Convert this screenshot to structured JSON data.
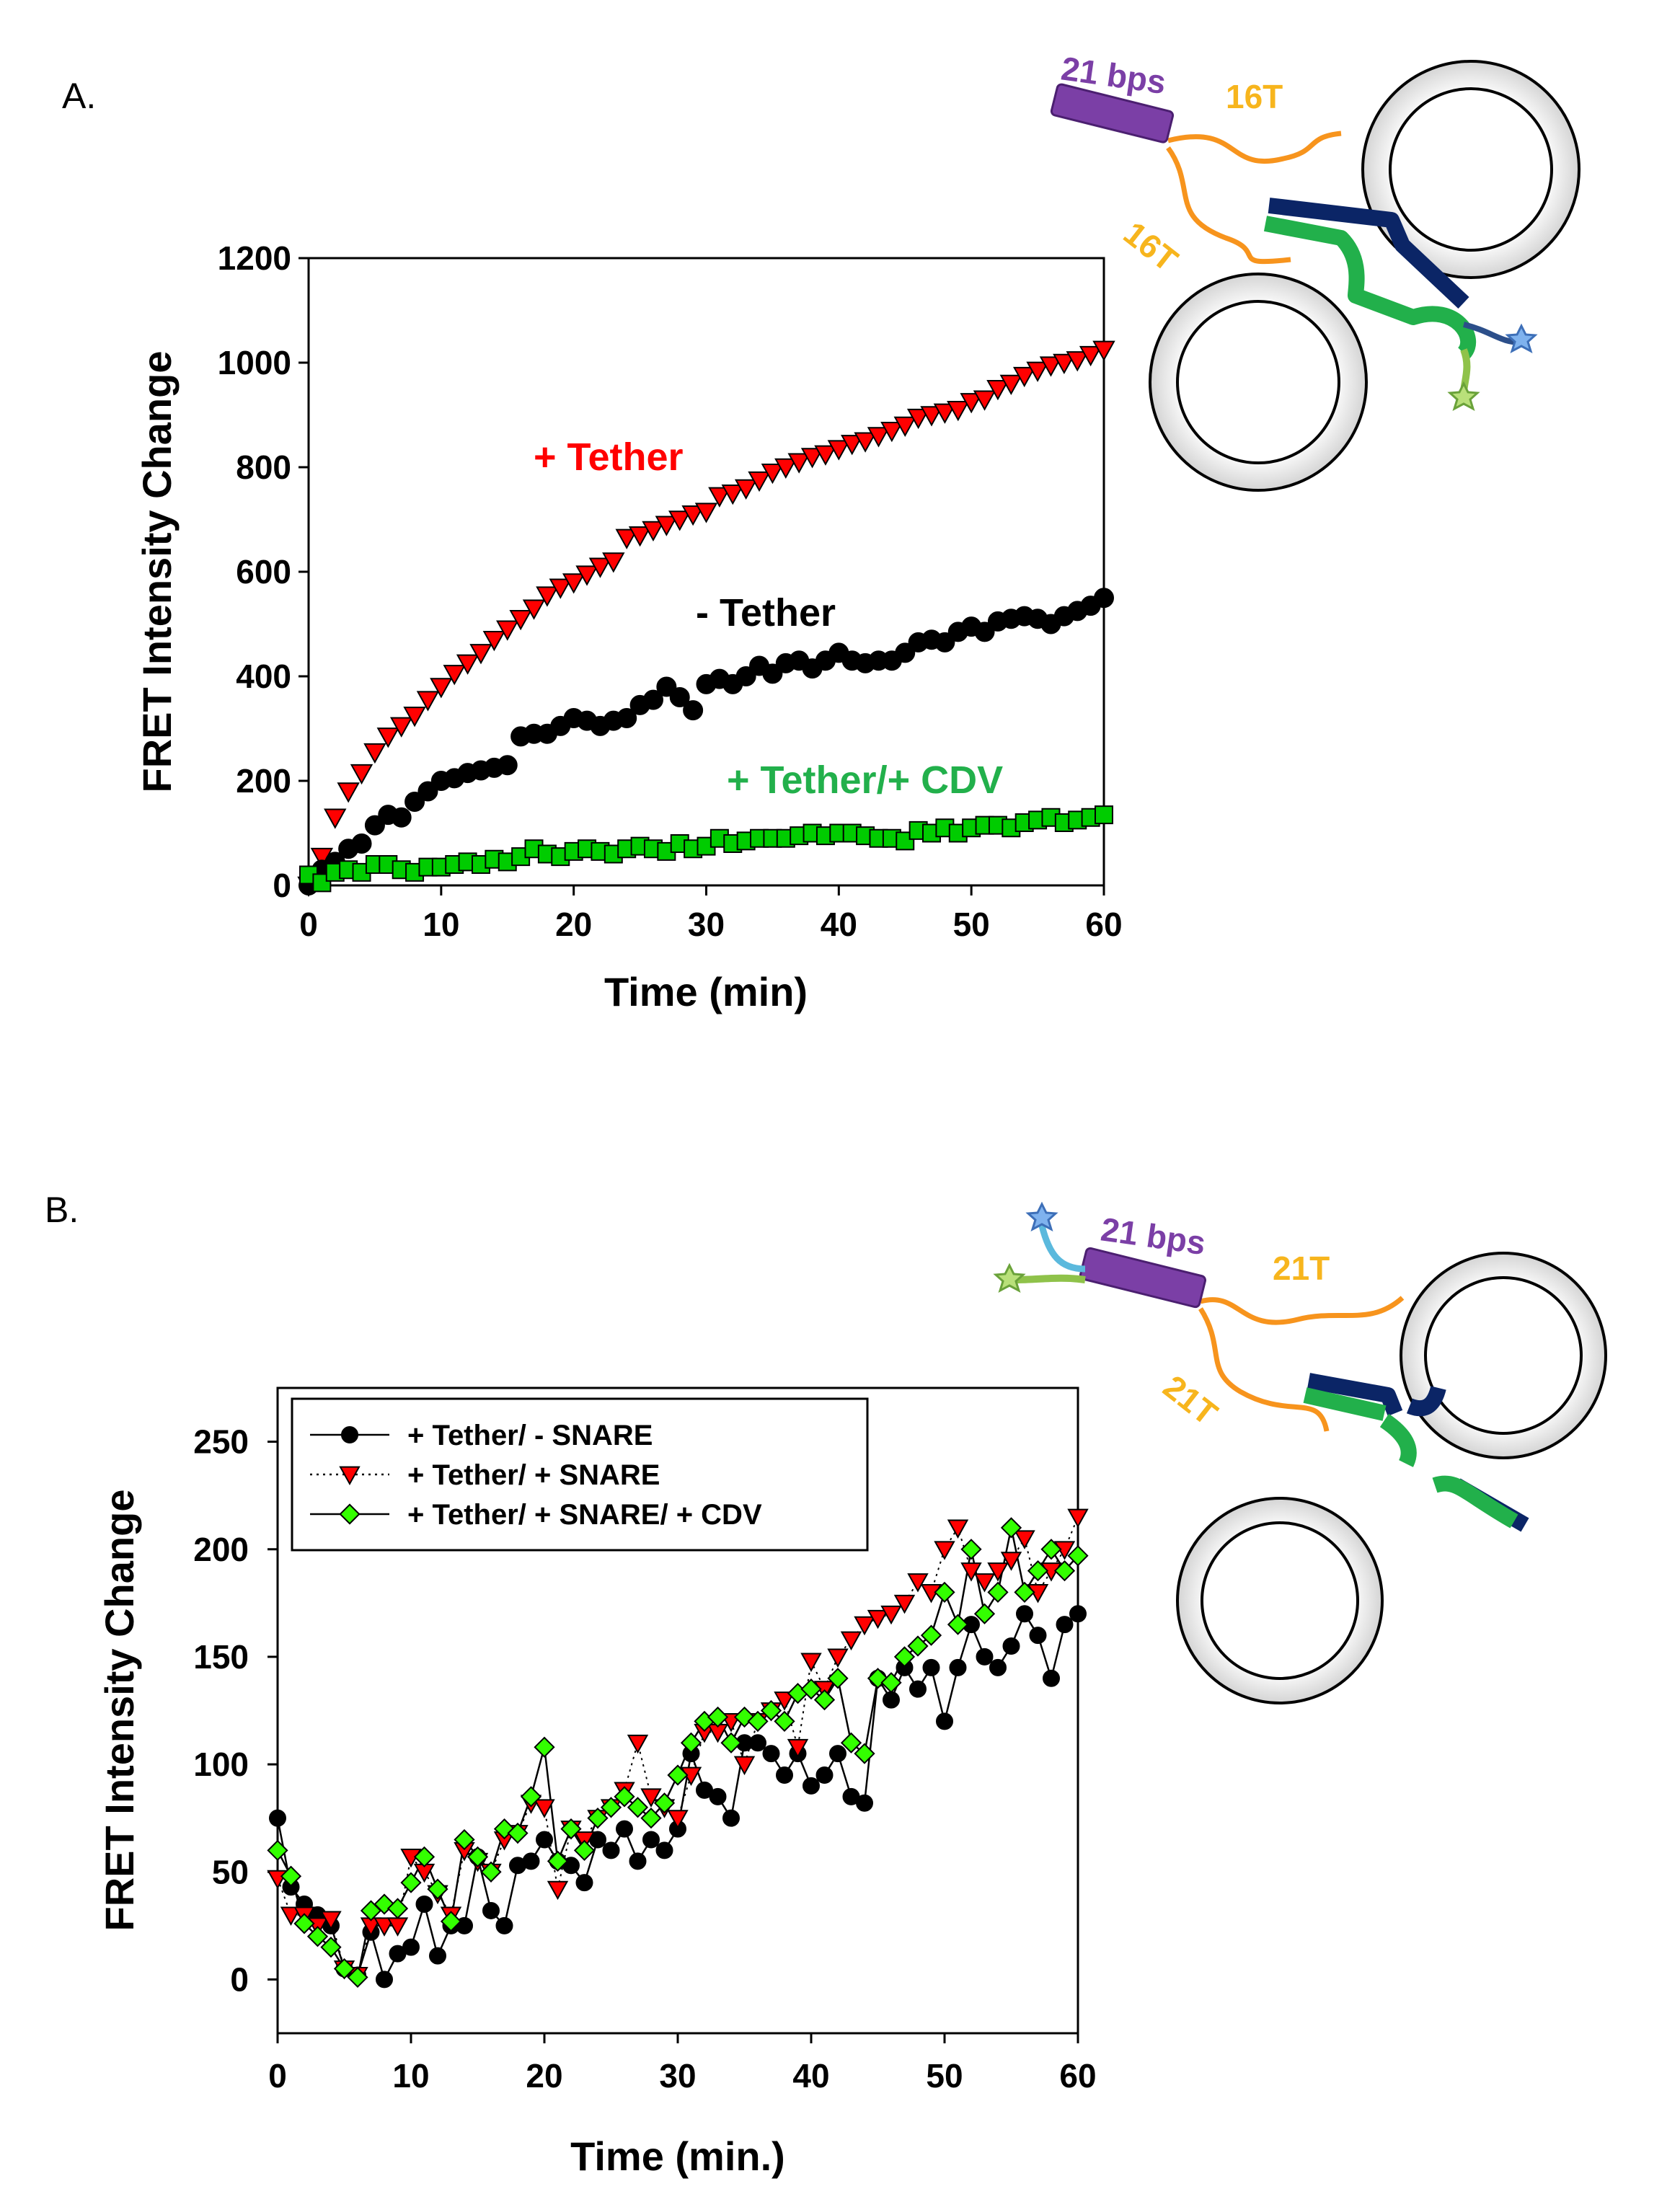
{
  "panels": {
    "a": {
      "label": "A."
    },
    "b": {
      "label": "B."
    }
  },
  "chart_data": [
    {
      "type": "scatter",
      "panel": "A.",
      "xlabel": "Time (min)",
      "ylabel": "FRET Intensity Change",
      "xlim": [
        0,
        60
      ],
      "ylim": [
        0,
        1200
      ],
      "xticks": [
        "0",
        "10",
        "20",
        "30",
        "40",
        "50",
        "60"
      ],
      "yticks": [
        "0",
        "200",
        "400",
        "600",
        "800",
        "1000",
        "1200"
      ],
      "legend": "inline labels",
      "series": [
        {
          "name": "+ Tether",
          "marker": "triangle-down",
          "color": "#ff0000",
          "x": [
            0,
            1,
            2,
            3,
            4,
            5,
            6,
            7,
            8,
            9,
            10,
            11,
            12,
            13,
            14,
            15,
            16,
            17,
            18,
            19,
            20,
            21,
            22,
            23,
            24,
            25,
            26,
            27,
            28,
            29,
            30,
            31,
            32,
            33,
            34,
            35,
            36,
            37,
            38,
            39,
            40,
            41,
            42,
            43,
            44,
            45,
            46,
            47,
            48,
            49,
            50,
            51,
            52,
            53,
            54,
            55,
            56,
            57,
            58,
            59,
            60
          ],
          "y": [
            0,
            55,
            130,
            180,
            215,
            255,
            285,
            305,
            325,
            355,
            380,
            405,
            425,
            445,
            470,
            490,
            510,
            530,
            555,
            570,
            580,
            595,
            610,
            620,
            665,
            670,
            680,
            690,
            700,
            710,
            715,
            745,
            750,
            760,
            775,
            790,
            800,
            810,
            820,
            825,
            835,
            845,
            850,
            860,
            870,
            880,
            895,
            900,
            905,
            910,
            925,
            930,
            950,
            960,
            975,
            985,
            995,
            1000,
            1005,
            1015,
            1025
          ]
        },
        {
          "name": "- Tether",
          "marker": "circle",
          "color": "#000000",
          "x": [
            0,
            1,
            2,
            3,
            4,
            5,
            6,
            7,
            8,
            9,
            10,
            11,
            12,
            13,
            14,
            15,
            16,
            17,
            18,
            19,
            20,
            21,
            22,
            23,
            24,
            25,
            26,
            27,
            28,
            29,
            30,
            31,
            32,
            33,
            34,
            35,
            36,
            37,
            38,
            39,
            40,
            41,
            42,
            43,
            44,
            45,
            46,
            47,
            48,
            49,
            50,
            51,
            52,
            53,
            54,
            55,
            56,
            57,
            58,
            59,
            60
          ],
          "y": [
            0,
            30,
            45,
            70,
            80,
            115,
            135,
            130,
            160,
            180,
            200,
            205,
            215,
            220,
            225,
            230,
            285,
            290,
            290,
            305,
            320,
            315,
            305,
            315,
            320,
            345,
            355,
            380,
            360,
            335,
            385,
            395,
            385,
            400,
            420,
            405,
            425,
            430,
            415,
            430,
            445,
            430,
            425,
            430,
            430,
            445,
            465,
            470,
            465,
            485,
            495,
            485,
            505,
            510,
            515,
            510,
            500,
            515,
            525,
            535,
            550
          ]
        },
        {
          "name": "+ Tether/+ CDV",
          "marker": "square",
          "color": "#00cc00",
          "x": [
            0,
            1,
            2,
            3,
            4,
            5,
            6,
            7,
            8,
            9,
            10,
            11,
            12,
            13,
            14,
            15,
            16,
            17,
            18,
            19,
            20,
            21,
            22,
            23,
            24,
            25,
            26,
            27,
            28,
            29,
            30,
            31,
            32,
            33,
            34,
            35,
            36,
            37,
            38,
            39,
            40,
            41,
            42,
            43,
            44,
            45,
            46,
            47,
            48,
            49,
            50,
            51,
            52,
            53,
            54,
            55,
            56,
            57,
            58,
            59,
            60
          ],
          "y": [
            20,
            5,
            25,
            30,
            25,
            40,
            40,
            30,
            25,
            35,
            35,
            40,
            45,
            40,
            50,
            45,
            55,
            70,
            60,
            55,
            65,
            70,
            65,
            60,
            70,
            75,
            70,
            65,
            80,
            70,
            75,
            90,
            80,
            85,
            90,
            90,
            90,
            95,
            100,
            95,
            100,
            100,
            95,
            90,
            90,
            85,
            105,
            100,
            110,
            100,
            110,
            115,
            115,
            110,
            120,
            125,
            130,
            120,
            125,
            130,
            135
          ]
        }
      ]
    },
    {
      "type": "line",
      "panel": "B.",
      "xlabel": "Time (min.)",
      "ylabel": "FRET Intensity Change",
      "xlim": [
        0,
        60
      ],
      "ylim": [
        -25,
        275
      ],
      "xticks": [
        "0",
        "10",
        "20",
        "30",
        "40",
        "50",
        "60"
      ],
      "yticks": [
        "0",
        "50",
        "100",
        "150",
        "200",
        "250"
      ],
      "legend": "top-left",
      "series": [
        {
          "name": "+ Tether/ - SNARE",
          "marker": "circle",
          "color": "#000000",
          "x": [
            0,
            1,
            2,
            3,
            4,
            5,
            6,
            7,
            8,
            9,
            10,
            11,
            12,
            13,
            14,
            15,
            16,
            17,
            18,
            19,
            20,
            21,
            22,
            23,
            24,
            25,
            26,
            27,
            28,
            29,
            30,
            31,
            32,
            33,
            34,
            35,
            36,
            37,
            38,
            39,
            40,
            41,
            42,
            43,
            44,
            45,
            46,
            47,
            48,
            49,
            50,
            51,
            52,
            53,
            54,
            55,
            56,
            57,
            58,
            59,
            60
          ],
          "y": [
            75,
            43,
            35,
            30,
            25,
            5,
            2,
            22,
            0,
            12,
            15,
            35,
            11,
            25,
            25,
            57,
            32,
            25,
            53,
            55,
            65,
            55,
            53,
            45,
            65,
            60,
            70,
            55,
            65,
            60,
            70,
            105,
            88,
            85,
            75,
            110,
            110,
            105,
            95,
            105,
            90,
            95,
            105,
            85,
            82,
            140,
            130,
            145,
            135,
            145,
            120,
            145,
            165,
            150,
            145,
            155,
            170,
            160,
            140,
            165,
            170
          ]
        },
        {
          "name": "+ Tether/ + SNARE",
          "marker": "triangle-down",
          "color": "#ff0000",
          "x": [
            0,
            1,
            2,
            3,
            4,
            5,
            6,
            7,
            8,
            9,
            10,
            11,
            12,
            13,
            14,
            15,
            16,
            17,
            18,
            19,
            20,
            21,
            22,
            23,
            24,
            25,
            26,
            27,
            28,
            29,
            30,
            31,
            32,
            33,
            34,
            35,
            36,
            37,
            38,
            39,
            40,
            41,
            42,
            43,
            44,
            45,
            46,
            47,
            48,
            49,
            50,
            51,
            52,
            53,
            54,
            55,
            56,
            57,
            58,
            59,
            60
          ],
          "y": [
            47,
            30,
            30,
            25,
            28,
            5,
            2,
            25,
            25,
            25,
            57,
            50,
            40,
            30,
            60,
            55,
            50,
            65,
            68,
            82,
            80,
            42,
            70,
            65,
            75,
            80,
            88,
            110,
            85,
            80,
            75,
            95,
            115,
            115,
            120,
            100,
            120,
            125,
            130,
            108,
            148,
            135,
            150,
            158,
            165,
            168,
            170,
            175,
            185,
            180,
            200,
            210,
            190,
            185,
            190,
            195,
            205,
            180,
            190,
            200,
            215
          ]
        },
        {
          "name": "+ Tether/ + SNARE/ + CDV",
          "marker": "diamond",
          "color": "#33ff00",
          "x": [
            0,
            1,
            2,
            3,
            4,
            5,
            6,
            7,
            8,
            9,
            10,
            11,
            12,
            13,
            14,
            15,
            16,
            17,
            18,
            19,
            20,
            21,
            22,
            23,
            24,
            25,
            26,
            27,
            28,
            29,
            30,
            31,
            32,
            33,
            34,
            35,
            36,
            37,
            38,
            39,
            40,
            41,
            42,
            43,
            44,
            45,
            46,
            47,
            48,
            49,
            50,
            51,
            52,
            53,
            54,
            55,
            56,
            57,
            58,
            59,
            60
          ],
          "y": [
            60,
            48,
            26,
            20,
            15,
            5,
            1,
            32,
            35,
            33,
            45,
            57,
            42,
            27,
            65,
            57,
            50,
            70,
            68,
            85,
            108,
            55,
            70,
            60,
            75,
            80,
            85,
            80,
            75,
            82,
            95,
            110,
            120,
            122,
            110,
            122,
            120,
            125,
            120,
            133,
            135,
            130,
            140,
            110,
            105,
            140,
            138,
            150,
            155,
            160,
            180,
            165,
            200,
            170,
            180,
            210,
            180,
            190,
            200,
            190,
            197
          ]
        }
      ]
    }
  ],
  "diagrams": {
    "a": {
      "duplex": "21 bps",
      "linker_top": "16T",
      "linker_side": "16T"
    },
    "b": {
      "duplex": "21 bps",
      "linker_top": "21T",
      "linker_side": "21T"
    }
  },
  "colors": {
    "tether": "#ff0000",
    "no_tether": "#000000",
    "cdv": "#00aa44",
    "duplex": "#7b3fa6",
    "linker": "#f7941d",
    "linker_text": "#f7b51d",
    "snare_dark": "#0b2566",
    "snare_green": "#22b04b"
  }
}
